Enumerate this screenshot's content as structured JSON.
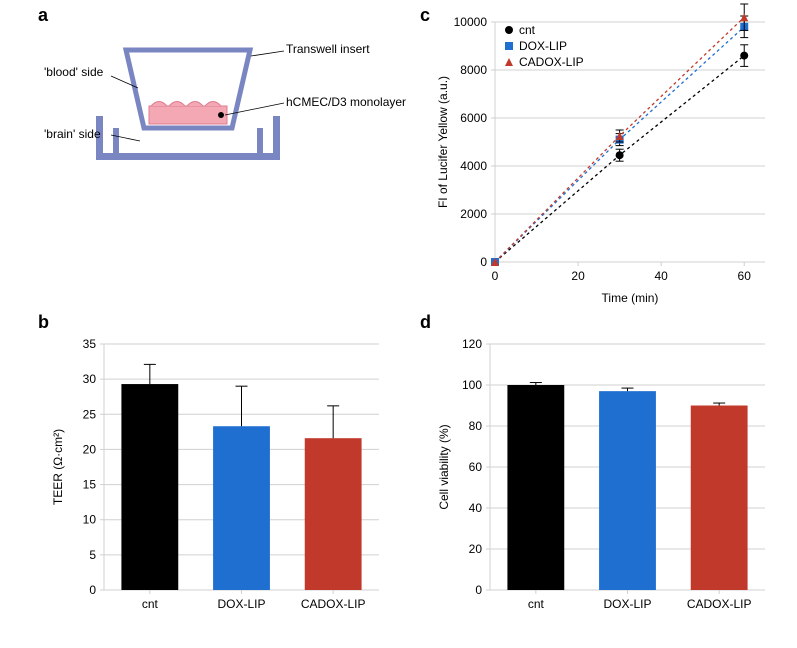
{
  "panels": {
    "a": {
      "label": "a"
    },
    "b": {
      "label": "b"
    },
    "c": {
      "label": "c"
    },
    "d": {
      "label": "d"
    }
  },
  "diagram": {
    "labels": {
      "blood": "'blood' side",
      "brain": "'brain' side",
      "transwell": "Transwell insert",
      "monolayer": "hCMEC/D3 monolayer"
    },
    "colors": {
      "plate": "#7a86c2",
      "insert_stroke": "#7a86c2",
      "medium": "#ffffff",
      "cells": "#f4a8b4",
      "cell_outline": "#e07a90"
    }
  },
  "chart_b": {
    "type": "bar",
    "categories": [
      "cnt",
      "DOX-LIP",
      "CADOX-LIP"
    ],
    "values": [
      29.3,
      23.3,
      21.6
    ],
    "errors": [
      2.8,
      5.7,
      4.6
    ],
    "colors": [
      "#000000",
      "#1f6fd0",
      "#c0392b"
    ],
    "ylabel": "TEER (Ω·cm²)",
    "ylim": [
      0,
      35
    ],
    "ytick_step": 5,
    "bar_width": 0.62,
    "axis_color": "#d0d0d0",
    "bg": "#ffffff",
    "label_fontsize": 12
  },
  "chart_c": {
    "type": "line",
    "xlabel": "Time (min)",
    "ylabel": "FI of Lucifer Yellow (a.u.)",
    "xlim": [
      0,
      65
    ],
    "ylim": [
      0,
      10000
    ],
    "xticks": [
      0,
      20,
      40,
      60
    ],
    "yticks": [
      0,
      2000,
      4000,
      6000,
      8000,
      10000
    ],
    "series": [
      {
        "name": "cnt",
        "color": "#000000",
        "marker": "circle",
        "x": [
          0,
          30,
          60
        ],
        "y": [
          0,
          4450,
          8600
        ],
        "err_y": [
          0,
          250,
          450
        ]
      },
      {
        "name": "DOX-LIP",
        "color": "#1f6fd0",
        "marker": "square",
        "x": [
          0,
          30,
          60
        ],
        "y": [
          0,
          5100,
          9800
        ],
        "err_y": [
          0,
          250,
          450
        ]
      },
      {
        "name": "CADOX-LIP",
        "color": "#c0392b",
        "marker": "triangle",
        "x": [
          0,
          30,
          60
        ],
        "y": [
          0,
          5250,
          10200
        ],
        "err_y": [
          0,
          250,
          550
        ]
      }
    ],
    "dash": "3,3",
    "axis_color": "#d0d0d0",
    "bg": "#ffffff",
    "label_fontsize": 12,
    "legend_pos": "top-left"
  },
  "chart_d": {
    "type": "bar",
    "categories": [
      "cnt",
      "DOX-LIP",
      "CADOX-LIP"
    ],
    "values": [
      100,
      97,
      90
    ],
    "errors": [
      1.2,
      1.5,
      1.2
    ],
    "colors": [
      "#000000",
      "#1f6fd0",
      "#c0392b"
    ],
    "ylabel": "Cell viability (%)",
    "ylim": [
      0,
      120
    ],
    "ytick_step": 20,
    "bar_width": 0.62,
    "axis_color": "#d0d0d0",
    "bg": "#ffffff",
    "label_fontsize": 12
  }
}
